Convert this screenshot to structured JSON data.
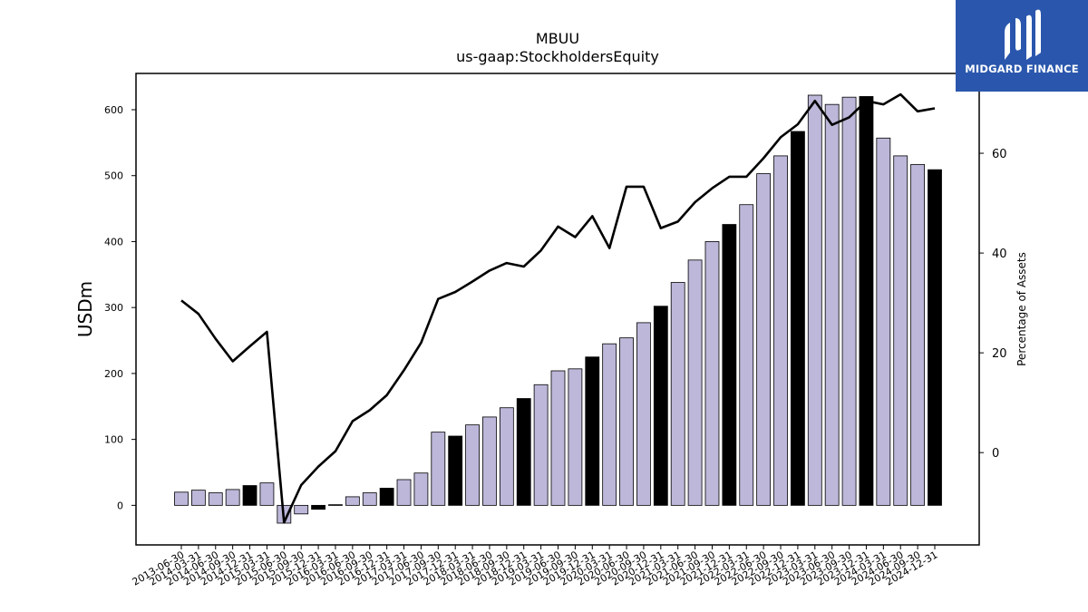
{
  "chart_data": {
    "type": "bar",
    "title": "MBUU",
    "subtitle": "us-gaap:StockholdersEquity",
    "ylabel": "USDm",
    "y2label": "Percentage of Assets",
    "ylim": [
      -60,
      655
    ],
    "y2lim": [
      -18.5,
      76
    ],
    "yticks": [
      0,
      100,
      200,
      300,
      400,
      500,
      600
    ],
    "y2ticks": [
      0,
      20,
      40,
      60
    ],
    "categories": [
      "2013-06-30",
      "2014-03-31",
      "2014-06-30",
      "2014-09-30",
      "2014-12-31",
      "2015-03-31",
      "2015-06-30",
      "2015-09-30",
      "2015-12-31",
      "2016-03-31",
      "2016-06-30",
      "2016-09-30",
      "2016-12-31",
      "2017-03-31",
      "2017-06-30",
      "2017-09-30",
      "2017-12-31",
      "2018-03-31",
      "2018-06-30",
      "2018-09-30",
      "2018-12-31",
      "2019-03-31",
      "2019-06-30",
      "2019-09-30",
      "2019-12-31",
      "2020-03-31",
      "2020-06-30",
      "2020-09-30",
      "2020-12-31",
      "2021-03-31",
      "2021-06-30",
      "2021-09-30",
      "2021-12-31",
      "2022-03-31",
      "2022-06-30",
      "2022-09-30",
      "2022-12-31",
      "2023-03-31",
      "2023-06-30",
      "2023-09-30",
      "2023-12-31",
      "2024-03-31",
      "2024-06-30",
      "2024-09-30",
      "2024-12-31"
    ],
    "series": [
      {
        "kind": "bar",
        "axis": "left",
        "values": [
          20,
          23,
          19,
          24,
          30,
          34,
          -27,
          -13,
          -6,
          1,
          13,
          19,
          26,
          39,
          49,
          111,
          105,
          122,
          134,
          148,
          162,
          183,
          204,
          207,
          225,
          245,
          254,
          277,
          302,
          338,
          372,
          400,
          426,
          456,
          503,
          530,
          567,
          622,
          608,
          619,
          620,
          557,
          530,
          517,
          509
        ]
      },
      {
        "kind": "line",
        "axis": "right",
        "values": [
          30.5,
          27.8,
          22.8,
          18.3,
          21.3,
          24.2,
          -14.0,
          -6.5,
          -2.8,
          0.3,
          6.3,
          8.5,
          11.5,
          16.5,
          22.0,
          30.8,
          32.2,
          34.3,
          36.5,
          38.0,
          37.3,
          40.5,
          45.3,
          43.2,
          47.4,
          41.0,
          53.3,
          53.3,
          45.0,
          46.3,
          50.2,
          53.0,
          55.3,
          55.3,
          59.0,
          63.2,
          65.8,
          70.5,
          65.7,
          67.2,
          70.5,
          69.8,
          71.8,
          68.4,
          69.0
        ]
      }
    ],
    "bar_colors": {
      "default": "#bdb7d9",
      "quarter_end": "#000000"
    },
    "line_color": "#000000",
    "highlighted_categories": [
      "2014-12-31",
      "2015-12-31",
      "2016-12-31",
      "2017-12-31",
      "2018-12-31",
      "2019-12-31",
      "2020-12-31",
      "2021-12-31",
      "2022-12-31",
      "2023-12-31",
      "2024-12-31"
    ],
    "grid": false,
    "legend": "none"
  },
  "logo": {
    "text": "MIDGARD FINANCE",
    "background": "#2a57ad"
  }
}
